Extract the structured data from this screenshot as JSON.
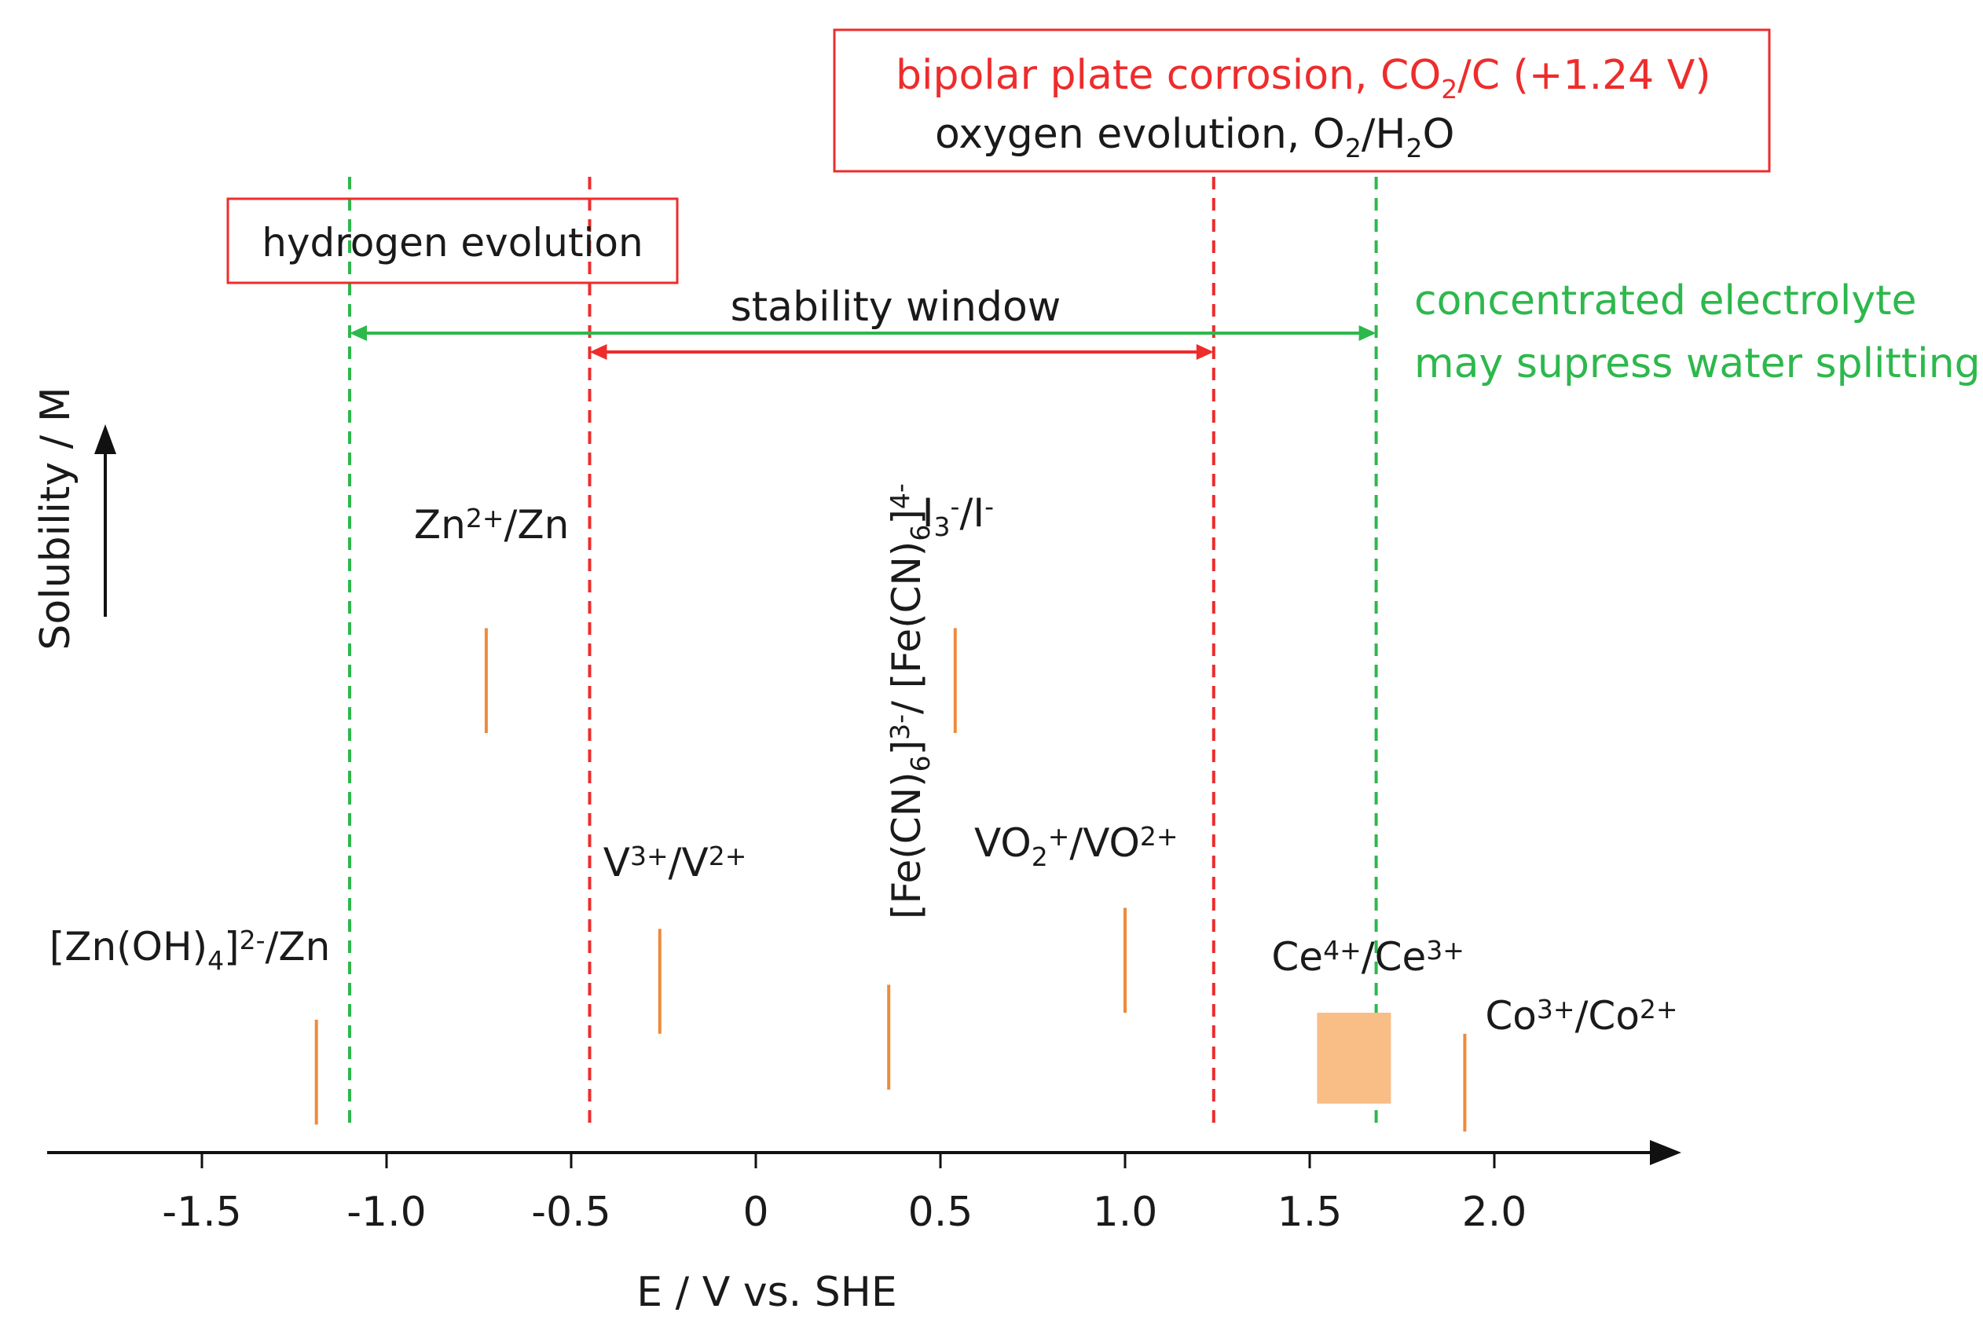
{
  "chart_data": {
    "type": "scatter",
    "subtype": "potential-solubility range diagram",
    "xlabel": "E / V vs. SHE",
    "ylabel": "Solubility / M",
    "xlim": [
      -1.95,
      2.5
    ],
    "xticks": [
      -1.5,
      -1.0,
      -0.5,
      0,
      0.5,
      1.0,
      1.5,
      2.0
    ],
    "xtick_labels": [
      "-1.5",
      "-1.0",
      "-0.5",
      "0",
      "0.5",
      "1.0",
      "1.5",
      "2.0"
    ],
    "y_axis_note": "qualitative (arrow only, no scale)",
    "ylim": [
      0,
      1
    ],
    "annotations": {
      "hydrogen_evolution": "hydrogen evolution",
      "corrosion_label": "bipolar plate corrosion, CO2/C (+1.24 V)",
      "oxygen_label": "oxygen evolution, O2/H2O",
      "stability_window": "stability window",
      "concentrated_line1": "concentrated electrolyte",
      "concentrated_line2": "may supress water splitting"
    },
    "reference_lines": [
      {
        "name": "hydrogen-evolution-concentrated",
        "x": -1.1,
        "color": "#2db84c"
      },
      {
        "name": "hydrogen-evolution",
        "x": -0.45,
        "color": "#ee2c2c"
      },
      {
        "name": "bipolar-plate-corrosion",
        "x": 1.24,
        "color": "#ee2c2c"
      },
      {
        "name": "oxygen-evolution-concentrated",
        "x": 1.68,
        "color": "#2db84c"
      }
    ],
    "stability_windows": [
      {
        "name": "standard",
        "from": -0.45,
        "to": 1.24,
        "color": "#ee2c2c"
      },
      {
        "name": "concentrated",
        "from": -1.1,
        "to": 1.68,
        "color": "#2db84c"
      }
    ],
    "couples": [
      {
        "name": "[Zn(OH)4]2-/Zn",
        "base": "[Zn(OH)",
        "sub": "4",
        "tail": "]",
        "sup2": "2-",
        "tail2": "/Zn",
        "x": -1.19,
        "y_low": 0.04,
        "y_high": 0.19
      },
      {
        "name": "Zn2+/Zn",
        "base": "Zn",
        "sup": "2+",
        "tail": "/Zn",
        "x": -0.73,
        "y_low": 0.6,
        "y_high": 0.75
      },
      {
        "name": "V3+/V2+",
        "base": "V",
        "sup": "3+",
        "tail": "/V",
        "sup2": "2+",
        "x": -0.26,
        "y_low": 0.17,
        "y_high": 0.32
      },
      {
        "name": "[Fe(CN)6]3-/[Fe(CN)6]4-",
        "part1": "[Fe(CN)",
        "sub1": "6",
        "part2": "]",
        "sup1": "3-",
        "part3": "/ [Fe(CN)",
        "sub2": "6",
        "part4": "]",
        "sup2": "4-",
        "x": 0.36,
        "y_low": 0.09,
        "y_high": 0.24
      },
      {
        "name": "I3-/I-",
        "base": "I",
        "sub": "3",
        "sup": "-",
        "tail": "/I",
        "sup2": "-",
        "x": 0.54,
        "y_low": 0.6,
        "y_high": 0.75
      },
      {
        "name": "VO2+/VO2+",
        "base": "VO",
        "sub": "2",
        "sup": "+",
        "tail": "/VO",
        "sup2": "2+",
        "x": 1.0,
        "y_low": 0.2,
        "y_high": 0.35
      },
      {
        "name": "Ce4+/Ce3+",
        "base": "Ce",
        "sup": "4+",
        "tail": "/Ce",
        "sup2": "3+",
        "x_low": 1.52,
        "x_high": 1.72,
        "y_low": 0.07,
        "y_high": 0.2,
        "shape": "box"
      },
      {
        "name": "Co3+/Co2+",
        "base": "Co",
        "sup": "3+",
        "tail": "/Co",
        "sup2": "2+",
        "x": 1.92,
        "y_low": 0.03,
        "y_high": 0.17
      }
    ],
    "colors": {
      "bar": "#ee8a3c",
      "box": "#f9bd86",
      "red": "#ee2c2c",
      "green": "#2db84c",
      "axis": "#111111",
      "text": "#1a1a1a"
    }
  }
}
